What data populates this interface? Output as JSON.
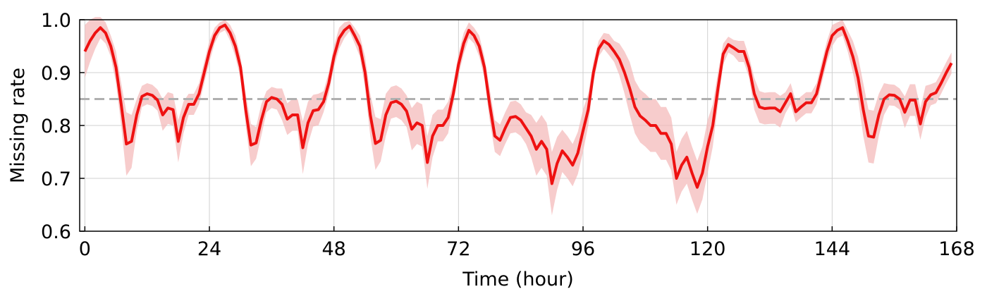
{
  "chart_data": {
    "type": "line",
    "xlabel": "Time (hour)",
    "ylabel": "Missing rate",
    "x": [
      0,
      1,
      2,
      3,
      4,
      5,
      6,
      7,
      8,
      9,
      10,
      11,
      12,
      13,
      14,
      15,
      16,
      17,
      18,
      19,
      20,
      21,
      22,
      23,
      24,
      25,
      26,
      27,
      28,
      29,
      30,
      31,
      32,
      33,
      34,
      35,
      36,
      37,
      38,
      39,
      40,
      41,
      42,
      43,
      44,
      45,
      46,
      47,
      48,
      49,
      50,
      51,
      52,
      53,
      54,
      55,
      56,
      57,
      58,
      59,
      60,
      61,
      62,
      63,
      64,
      65,
      66,
      67,
      68,
      69,
      70,
      71,
      72,
      73,
      74,
      75,
      76,
      77,
      78,
      79,
      80,
      81,
      82,
      83,
      84,
      85,
      86,
      87,
      88,
      89,
      90,
      91,
      92,
      93,
      94,
      95,
      96,
      97,
      98,
      99,
      100,
      101,
      102,
      103,
      104,
      105,
      106,
      107,
      108,
      109,
      110,
      111,
      112,
      113,
      114,
      115,
      116,
      117,
      118,
      119,
      120,
      121,
      122,
      123,
      124,
      125,
      126,
      127,
      128,
      129,
      130,
      131,
      132,
      133,
      134,
      135,
      136,
      137,
      138,
      139,
      140,
      141,
      142,
      143,
      144,
      145,
      146,
      147,
      148,
      149,
      150,
      151,
      152,
      153,
      154,
      155,
      156,
      157,
      158,
      159,
      160,
      161,
      162,
      163,
      164,
      165,
      166,
      167
    ],
    "series": [
      {
        "color": "#ee1111",
        "band_color": "#f4b6b6",
        "values": [
          0.94,
          0.96,
          0.975,
          0.985,
          0.975,
          0.95,
          0.91,
          0.84,
          0.765,
          0.77,
          0.82,
          0.855,
          0.86,
          0.857,
          0.848,
          0.82,
          0.833,
          0.83,
          0.77,
          0.815,
          0.84,
          0.84,
          0.86,
          0.9,
          0.94,
          0.97,
          0.985,
          0.99,
          0.975,
          0.95,
          0.91,
          0.83,
          0.763,
          0.767,
          0.81,
          0.845,
          0.853,
          0.85,
          0.84,
          0.812,
          0.82,
          0.82,
          0.758,
          0.805,
          0.828,
          0.83,
          0.845,
          0.88,
          0.93,
          0.965,
          0.98,
          0.988,
          0.97,
          0.95,
          0.9,
          0.82,
          0.766,
          0.772,
          0.82,
          0.843,
          0.846,
          0.84,
          0.827,
          0.793,
          0.805,
          0.8,
          0.73,
          0.78,
          0.8,
          0.8,
          0.815,
          0.86,
          0.915,
          0.955,
          0.98,
          0.97,
          0.95,
          0.91,
          0.84,
          0.78,
          0.772,
          0.795,
          0.815,
          0.817,
          0.81,
          0.795,
          0.78,
          0.755,
          0.77,
          0.755,
          0.69,
          0.728,
          0.752,
          0.74,
          0.725,
          0.748,
          0.79,
          0.83,
          0.9,
          0.945,
          0.96,
          0.953,
          0.94,
          0.925,
          0.9,
          0.87,
          0.835,
          0.818,
          0.81,
          0.8,
          0.8,
          0.785,
          0.785,
          0.765,
          0.7,
          0.725,
          0.74,
          0.71,
          0.683,
          0.71,
          0.76,
          0.8,
          0.87,
          0.935,
          0.953,
          0.947,
          0.94,
          0.94,
          0.91,
          0.86,
          0.835,
          0.832,
          0.833,
          0.833,
          0.826,
          0.843,
          0.86,
          0.826,
          0.835,
          0.843,
          0.843,
          0.86,
          0.9,
          0.94,
          0.97,
          0.98,
          0.985,
          0.96,
          0.93,
          0.89,
          0.83,
          0.78,
          0.778,
          0.82,
          0.85,
          0.858,
          0.857,
          0.85,
          0.825,
          0.848,
          0.848,
          0.803,
          0.845,
          0.858,
          0.862,
          0.88,
          0.9,
          0.918
        ],
        "error": [
          0.05,
          0.04,
          0.03,
          0.02,
          0.02,
          0.02,
          0.03,
          0.04,
          0.06,
          0.05,
          0.03,
          0.02,
          0.02,
          0.02,
          0.02,
          0.03,
          0.03,
          0.03,
          0.04,
          0.03,
          0.02,
          0.02,
          0.02,
          0.02,
          0.02,
          0.015,
          0.01,
          0.01,
          0.015,
          0.02,
          0.02,
          0.03,
          0.04,
          0.03,
          0.03,
          0.02,
          0.02,
          0.02,
          0.03,
          0.03,
          0.03,
          0.03,
          0.05,
          0.04,
          0.03,
          0.03,
          0.02,
          0.02,
          0.02,
          0.02,
          0.015,
          0.01,
          0.015,
          0.02,
          0.03,
          0.04,
          0.05,
          0.04,
          0.04,
          0.03,
          0.03,
          0.03,
          0.03,
          0.04,
          0.04,
          0.04,
          0.05,
          0.04,
          0.03,
          0.03,
          0.03,
          0.02,
          0.02,
          0.02,
          0.015,
          0.015,
          0.02,
          0.02,
          0.03,
          0.03,
          0.03,
          0.03,
          0.03,
          0.03,
          0.03,
          0.03,
          0.04,
          0.05,
          0.05,
          0.05,
          0.06,
          0.05,
          0.04,
          0.04,
          0.04,
          0.04,
          0.04,
          0.03,
          0.02,
          0.015,
          0.015,
          0.02,
          0.02,
          0.03,
          0.04,
          0.05,
          0.05,
          0.05,
          0.05,
          0.05,
          0.05,
          0.05,
          0.05,
          0.05,
          0.05,
          0.05,
          0.05,
          0.05,
          0.05,
          0.05,
          0.05,
          0.04,
          0.03,
          0.02,
          0.015,
          0.015,
          0.02,
          0.02,
          0.02,
          0.03,
          0.03,
          0.03,
          0.03,
          0.03,
          0.03,
          0.02,
          0.02,
          0.02,
          0.02,
          0.02,
          0.02,
          0.02,
          0.02,
          0.02,
          0.02,
          0.015,
          0.015,
          0.02,
          0.03,
          0.04,
          0.05,
          0.05,
          0.05,
          0.04,
          0.03,
          0.02,
          0.02,
          0.02,
          0.03,
          0.03,
          0.03,
          0.03,
          0.03,
          0.02,
          0.02,
          0.02,
          0.02,
          0.02
        ]
      }
    ],
    "reference_line": {
      "value": 0.85,
      "color": "#b0b0b0"
    },
    "xlim": [
      -1,
      168
    ],
    "xticks": [
      0,
      24,
      48,
      72,
      96,
      120,
      144,
      168
    ],
    "ylim": [
      0.6,
      1.0
    ],
    "yticks": [
      0.6,
      0.7,
      0.8,
      0.9,
      {
        "value": 1.0,
        "label": "1.0"
      }
    ],
    "grid": true
  }
}
